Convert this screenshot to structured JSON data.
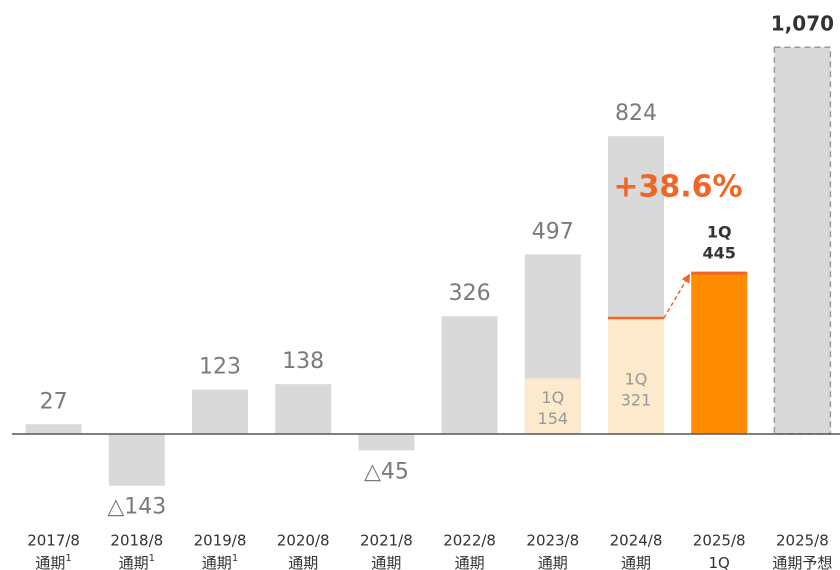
{
  "chart_data": {
    "type": "bar",
    "categories": [
      "2017/8",
      "2018/8",
      "2019/8",
      "2020/8",
      "2021/8",
      "2022/8",
      "2023/8",
      "2024/8",
      "2025/8",
      "2025/8"
    ],
    "category_sublabels": [
      "通期",
      "通期",
      "通期",
      "通期",
      "通期",
      "通期",
      "通期",
      "通期",
      "1Q",
      "通期予想"
    ],
    "category_notes": [
      "1",
      "1",
      "1",
      null,
      null,
      null,
      null,
      null,
      null,
      null
    ],
    "series": [
      {
        "color": "#d9d9d9",
        "values": [
          27,
          -143,
          123,
          138,
          -45,
          326,
          497,
          824,
          null,
          1070
        ],
        "value_labels": [
          "27",
          "△143",
          "123",
          "138",
          "△45",
          "326",
          "497",
          "824",
          null,
          "1,070"
        ],
        "line_style": [
          "solid",
          "solid",
          "solid",
          "solid",
          "solid",
          "solid",
          "solid",
          "solid",
          null,
          "dashed"
        ]
      },
      {
        "name": "1Q",
        "colors": [
          null,
          null,
          null,
          null,
          null,
          null,
          "#fde9cc",
          "#fde9cc",
          "#ff8c00",
          null
        ],
        "values": [
          null,
          null,
          null,
          null,
          null,
          null,
          154,
          321,
          445,
          null
        ]
      }
    ],
    "annotation": {
      "value": 38.6,
      "label": "+38.6%",
      "color": "#f26522"
    },
    "ylim": [
      -250,
      1090
    ]
  }
}
